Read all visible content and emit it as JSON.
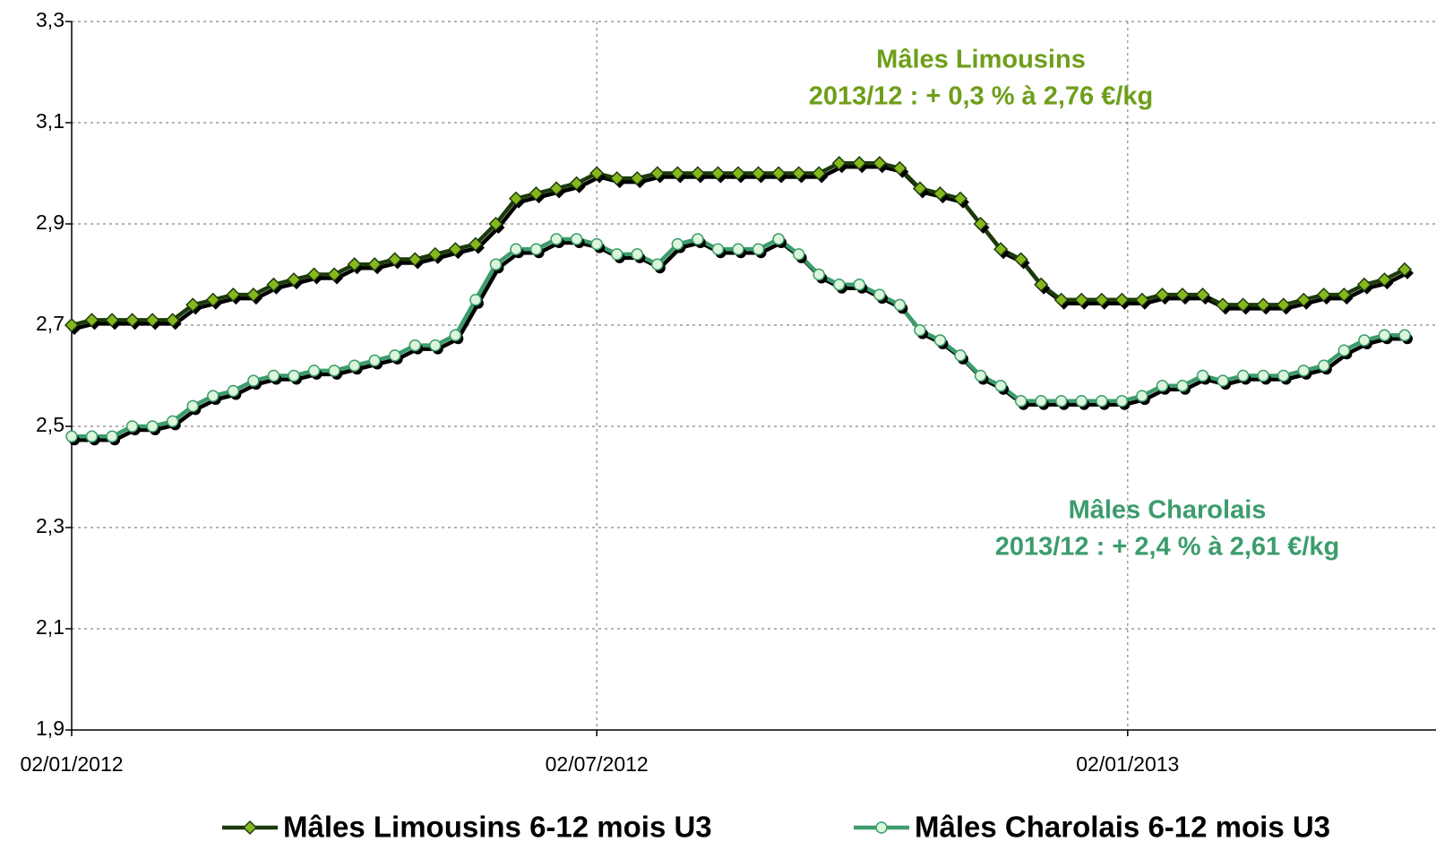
{
  "chart_data": {
    "type": "line",
    "x": [
      "2012-01-02",
      "2012-01-09",
      "2012-01-16",
      "2012-01-23",
      "2012-01-30",
      "2012-02-06",
      "2012-02-13",
      "2012-02-20",
      "2012-02-27",
      "2012-03-05",
      "2012-03-12",
      "2012-03-19",
      "2012-03-26",
      "2012-04-02",
      "2012-04-09",
      "2012-04-16",
      "2012-04-23",
      "2012-04-30",
      "2012-05-07",
      "2012-05-14",
      "2012-05-21",
      "2012-05-28",
      "2012-06-04",
      "2012-06-11",
      "2012-06-18",
      "2012-06-25",
      "2012-07-02",
      "2012-07-09",
      "2012-07-16",
      "2012-07-23",
      "2012-07-30",
      "2012-08-06",
      "2012-08-13",
      "2012-08-20",
      "2012-08-27",
      "2012-09-03",
      "2012-09-10",
      "2012-09-17",
      "2012-09-24",
      "2012-10-01",
      "2012-10-08",
      "2012-10-15",
      "2012-10-22",
      "2012-10-29",
      "2012-11-05",
      "2012-11-12",
      "2012-11-19",
      "2012-11-26",
      "2012-12-03",
      "2012-12-10",
      "2012-12-17",
      "2012-12-24",
      "2012-12-31",
      "2013-01-07",
      "2013-01-14",
      "2013-01-21",
      "2013-01-28",
      "2013-02-04",
      "2013-02-11",
      "2013-02-18",
      "2013-02-25",
      "2013-03-04",
      "2013-03-11",
      "2013-03-18",
      "2013-03-25",
      "2013-04-01",
      "2013-04-08"
    ],
    "series": [
      {
        "name": "Mâles Limousins 6-12 mois U3",
        "color": "#1c3a0c",
        "marker": "diamond",
        "marker_color": "#86b81e",
        "values": [
          2.7,
          2.71,
          2.71,
          2.71,
          2.71,
          2.71,
          2.74,
          2.75,
          2.76,
          2.76,
          2.78,
          2.79,
          2.8,
          2.8,
          2.82,
          2.82,
          2.83,
          2.83,
          2.84,
          2.85,
          2.86,
          2.9,
          2.95,
          2.96,
          2.97,
          2.98,
          3.0,
          2.99,
          2.99,
          3.0,
          3.0,
          3.0,
          3.0,
          3.0,
          3.0,
          3.0,
          3.0,
          3.0,
          3.02,
          3.02,
          3.02,
          3.01,
          2.97,
          2.96,
          2.95,
          2.9,
          2.85,
          2.83,
          2.78,
          2.75,
          2.75,
          2.75,
          2.75,
          2.75,
          2.76,
          2.76,
          2.76,
          2.74,
          2.74,
          2.74,
          2.74,
          2.75,
          2.76,
          2.76,
          2.78,
          2.79,
          2.81
        ]
      },
      {
        "name": "Mâles Charolais 6-12 mois U3",
        "color": "#3c9c6c",
        "marker": "circle",
        "marker_color": "#dcf6dc",
        "values": [
          2.48,
          2.48,
          2.48,
          2.5,
          2.5,
          2.51,
          2.54,
          2.56,
          2.57,
          2.59,
          2.6,
          2.6,
          2.61,
          2.61,
          2.62,
          2.63,
          2.64,
          2.66,
          2.66,
          2.68,
          2.75,
          2.82,
          2.85,
          2.85,
          2.87,
          2.87,
          2.86,
          2.84,
          2.84,
          2.82,
          2.86,
          2.87,
          2.85,
          2.85,
          2.85,
          2.87,
          2.84,
          2.8,
          2.78,
          2.78,
          2.76,
          2.74,
          2.69,
          2.67,
          2.64,
          2.6,
          2.58,
          2.55,
          2.55,
          2.55,
          2.55,
          2.55,
          2.55,
          2.56,
          2.58,
          2.58,
          2.6,
          2.59,
          2.6,
          2.6,
          2.6,
          2.61,
          2.62,
          2.65,
          2.67,
          2.68,
          2.68
        ]
      }
    ],
    "xlim": [
      "2012-01-02",
      "2013-04-08"
    ],
    "xticks": [
      {
        "value": "2012-01-02",
        "label": "02/01/2012"
      },
      {
        "value": "2012-07-02",
        "label": "02/07/2012"
      },
      {
        "value": "2013-01-02",
        "label": "02/01/2013"
      }
    ],
    "ylim": [
      1.9,
      3.3
    ],
    "yticks": [
      {
        "value": 1.9,
        "label": "1,9"
      },
      {
        "value": 2.1,
        "label": "2,1"
      },
      {
        "value": 2.3,
        "label": "2,3"
      },
      {
        "value": 2.5,
        "label": "2,5"
      },
      {
        "value": 2.7,
        "label": "2,7"
      },
      {
        "value": 2.9,
        "label": "2,9"
      },
      {
        "value": 3.1,
        "label": "3,1"
      },
      {
        "value": 3.3,
        "label": "3,3"
      }
    ],
    "grid": true,
    "legend": "bottom",
    "annotations": [
      {
        "lines": [
          "Mâles Limousins",
          "2013/12 : + 0,3 % à 2,76 €/kg"
        ],
        "color": "#6e9e1a"
      },
      {
        "lines": [
          "Mâles Charolais",
          "2013/12 : + 2,4 % à 2,61 €/kg"
        ],
        "color": "#3c9c6c"
      }
    ]
  }
}
